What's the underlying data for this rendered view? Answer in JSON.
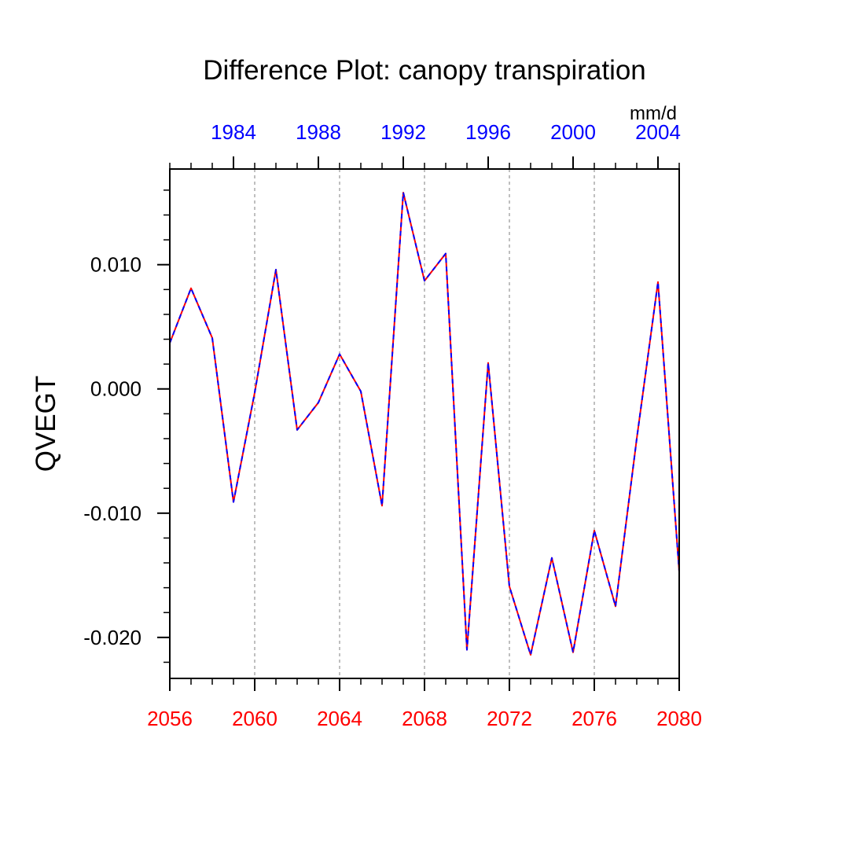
{
  "chart_data": {
    "type": "line",
    "title": "Difference Plot: canopy transpiration",
    "ylabel": "QVEGT",
    "units": "mm/d",
    "ylim": [
      -0.0233,
      0.0177
    ],
    "yticks": [
      0.01,
      0.0,
      -0.01,
      -0.02
    ],
    "ytick_labels": [
      "0.010",
      "0.000",
      "-0.010",
      "-0.020"
    ],
    "bottom_axis": {
      "xlim": [
        2056,
        2080
      ],
      "ticks": [
        2056,
        2060,
        2064,
        2068,
        2072,
        2076,
        2080
      ],
      "tick_labels": [
        "2056",
        "2060",
        "2064",
        "2068",
        "2072",
        "2076",
        "2080"
      ],
      "color": "#ff0000"
    },
    "top_axis": {
      "xlim": [
        1981,
        2005
      ],
      "ticks": [
        1984,
        1988,
        1992,
        1996,
        2000,
        2004
      ],
      "tick_labels": [
        "1984",
        "1988",
        "1992",
        "1996",
        "2000",
        "2004"
      ],
      "color": "#0000ff"
    },
    "grid": "vertical-dotted",
    "series": [
      {
        "color": "#ff0000",
        "style": "solid",
        "x": [
          2056,
          2057,
          2058,
          2059,
          2060,
          2061,
          2062,
          2063,
          2064,
          2065,
          2066,
          2067,
          2068,
          2069,
          2070,
          2071,
          2072,
          2073,
          2074,
          2075,
          2076,
          2077,
          2078,
          2079,
          2080
        ],
        "values": [
          0.0037,
          0.0081,
          0.0041,
          -0.0091,
          -0.0003,
          0.0096,
          -0.0033,
          -0.0011,
          0.0028,
          -0.0002,
          -0.0094,
          0.0158,
          0.0087,
          0.0109,
          -0.021,
          0.0021,
          -0.0159,
          -0.0214,
          -0.0136,
          -0.0212,
          -0.0114,
          -0.0175,
          -0.004,
          0.0086,
          -0.0147
        ]
      },
      {
        "color": "#0000ff",
        "style": "dashed",
        "x": [
          1981,
          1982,
          1983,
          1984,
          1985,
          1986,
          1987,
          1988,
          1989,
          1990,
          1991,
          1992,
          1993,
          1994,
          1995,
          1996,
          1997,
          1998,
          1999,
          2000,
          2001,
          2002,
          2003,
          2004,
          2005
        ],
        "values": [
          0.0037,
          0.0081,
          0.0041,
          -0.0091,
          -0.0003,
          0.0096,
          -0.0033,
          -0.0011,
          0.0028,
          -0.0002,
          -0.0094,
          0.0158,
          0.0087,
          0.0109,
          -0.021,
          0.0021,
          -0.0159,
          -0.0214,
          -0.0136,
          -0.0212,
          -0.0114,
          -0.0175,
          -0.004,
          0.0086,
          -0.0147
        ]
      }
    ]
  }
}
